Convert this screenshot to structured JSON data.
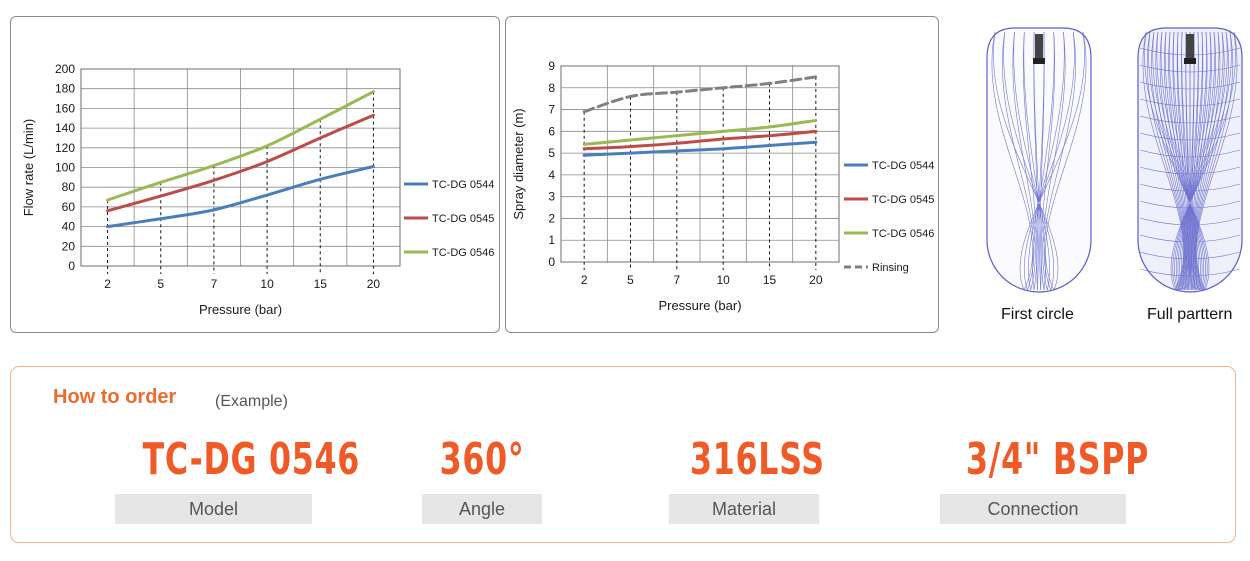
{
  "chart_data": [
    {
      "type": "line",
      "title": "",
      "xlabel": "Pressure (bar)",
      "ylabel": "Flow rate (L/min)",
      "categories": [
        "2",
        "5",
        "7",
        "10",
        "15",
        "20"
      ],
      "ylim": [
        0,
        200
      ],
      "yticks": [
        0,
        20,
        40,
        60,
        80,
        100,
        120,
        140,
        160,
        180,
        200
      ],
      "grid": true,
      "legend_position": "right",
      "series": [
        {
          "name": "TC-DG 0544",
          "color": "#4a7ebb",
          "values": [
            40,
            48,
            57,
            72,
            88,
            101
          ]
        },
        {
          "name": "TC-DG 0545",
          "color": "#be4b48",
          "values": [
            56,
            71,
            87,
            106,
            130,
            153
          ]
        },
        {
          "name": "TC-DG 0546",
          "color": "#98b954",
          "values": [
            67,
            85,
            102,
            122,
            149,
            177
          ]
        }
      ]
    },
    {
      "type": "line",
      "title": "",
      "xlabel": "Pressure (bar)",
      "ylabel": "Spray diameter (m)",
      "categories": [
        "2",
        "5",
        "7",
        "10",
        "15",
        "20"
      ],
      "ylim": [
        0,
        9
      ],
      "yticks": [
        0,
        1,
        2,
        3,
        4,
        5,
        6,
        7,
        8,
        9
      ],
      "grid": true,
      "legend_position": "right",
      "series": [
        {
          "name": "TC-DG 0544",
          "color": "#4a7ebb",
          "values": [
            4.9,
            5.0,
            5.1,
            5.2,
            5.35,
            5.5
          ]
        },
        {
          "name": "TC-DG 0545",
          "color": "#be4b48",
          "values": [
            5.2,
            5.3,
            5.45,
            5.65,
            5.8,
            6.0
          ]
        },
        {
          "name": "TC-DG 0546",
          "color": "#98b954",
          "values": [
            5.4,
            5.6,
            5.8,
            6.0,
            6.2,
            6.5
          ]
        },
        {
          "name": "Rinsing",
          "color": "#808080",
          "dashed": true,
          "values": [
            6.9,
            7.6,
            7.8,
            8.0,
            8.2,
            8.5
          ]
        }
      ]
    }
  ],
  "patterns": {
    "first_caption": "First circle",
    "full_caption": "Full parttern",
    "line_color": "#5b5fc7"
  },
  "order": {
    "title": "How to order",
    "subtitle": "(Example)",
    "fields": [
      {
        "value": "TC-DG 0546",
        "label": "Model"
      },
      {
        "value": "360°",
        "label": "Angle"
      },
      {
        "value": "316LSS",
        "label": "Material"
      },
      {
        "value": "3/4\" BSPP",
        "label": "Connection"
      }
    ],
    "accent": "#ef5a27",
    "border": "#f3b58c"
  }
}
